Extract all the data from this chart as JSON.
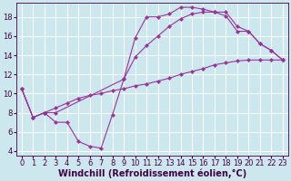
{
  "background_color": "#cce8ee",
  "line_color": "#993399",
  "grid_color": "#b0d8e0",
  "xlabel": "Windchill (Refroidissement éolien,°C)",
  "xlabel_fontsize": 7.0,
  "tick_fontsize": 6.0,
  "xlim": [
    -0.5,
    23.5
  ],
  "ylim": [
    3.5,
    19.5
  ],
  "yticks": [
    4,
    6,
    8,
    10,
    12,
    14,
    16,
    18
  ],
  "xticks": [
    0,
    1,
    2,
    3,
    4,
    5,
    6,
    7,
    8,
    9,
    10,
    11,
    12,
    13,
    14,
    15,
    16,
    17,
    18,
    19,
    20,
    21,
    22,
    23
  ],
  "curve1_x": [
    0,
    1,
    2,
    3,
    9,
    10,
    11,
    12,
    13,
    14,
    15,
    16,
    17,
    18,
    19,
    20,
    21,
    22,
    23
  ],
  "curve1_y": [
    10.5,
    7.5,
    8.0,
    8.0,
    11.5,
    15.8,
    18.0,
    18.0,
    18.3,
    19.0,
    19.0,
    18.8,
    18.5,
    18.1,
    16.5,
    16.5,
    15.2,
    14.5,
    13.5
  ],
  "curve2_x": [
    0,
    1,
    2,
    3,
    4,
    5,
    6,
    7,
    8,
    9,
    10,
    11,
    12,
    13,
    14,
    15,
    16,
    17,
    18,
    19,
    20,
    21,
    22,
    23
  ],
  "curve2_y": [
    10.5,
    7.5,
    8.0,
    7.0,
    7.0,
    5.0,
    4.5,
    4.3,
    7.8,
    11.5,
    13.8,
    15.0,
    16.0,
    17.0,
    17.8,
    18.3,
    18.5,
    18.5,
    18.5,
    17.0,
    16.5,
    15.2,
    14.5,
    13.5
  ],
  "curve3_x": [
    0,
    1,
    2,
    3,
    4,
    5,
    6,
    7,
    8,
    9,
    10,
    11,
    12,
    13,
    14,
    15,
    16,
    17,
    18,
    19,
    20,
    21,
    22,
    23
  ],
  "curve3_y": [
    10.5,
    7.5,
    8.0,
    8.5,
    9.0,
    9.5,
    9.8,
    10.0,
    10.3,
    10.5,
    10.8,
    11.0,
    11.3,
    11.6,
    12.0,
    12.3,
    12.6,
    13.0,
    13.2,
    13.4,
    13.5,
    13.5,
    13.5,
    13.5
  ]
}
